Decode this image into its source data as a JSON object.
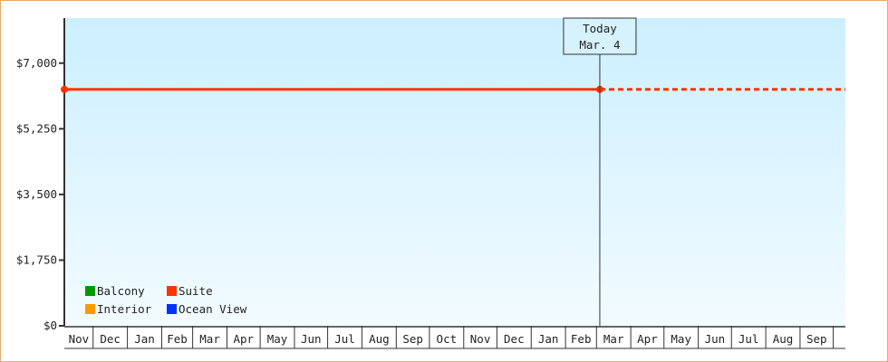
{
  "chart_data": {
    "type": "line",
    "title": "",
    "xlabel": "",
    "ylabel": "",
    "ylim": [
      0,
      8200
    ],
    "yticks": [
      0,
      1750,
      3500,
      5250,
      7000
    ],
    "ytick_labels": [
      "$0",
      "$1,750",
      "$3,500",
      "$5,250",
      "$7,000"
    ],
    "x_months": [
      "Nov",
      "Dec",
      "Jan",
      "Feb",
      "Mar",
      "Apr",
      "May",
      "Jun",
      "Jul",
      "Aug",
      "Sep",
      "Oct",
      "Nov",
      "Dec",
      "Jan",
      "Feb",
      "Mar",
      "Apr",
      "May",
      "Jun",
      "Jul",
      "Aug",
      "Sep"
    ],
    "grid": false,
    "legend_placement": "bottom-left",
    "today_marker": {
      "line1": "Today",
      "line2": "Mar. 4"
    },
    "series": [
      {
        "name": "Balcony",
        "color": "#009900",
        "values": []
      },
      {
        "name": "Suite",
        "color": "#ff3300",
        "values": [
          {
            "x": "Nov (start)",
            "y": 6300
          },
          {
            "x": "Mar. 4",
            "y": 6300
          }
        ],
        "projection": {
          "style": "dashed",
          "y": 6300,
          "to": "end"
        }
      },
      {
        "name": "Interior",
        "color": "#ff9900",
        "values": []
      },
      {
        "name": "Ocean View",
        "color": "#0033ff",
        "values": []
      }
    ],
    "background_gradient": [
      "#ccefff",
      "#f2fbff"
    ]
  }
}
